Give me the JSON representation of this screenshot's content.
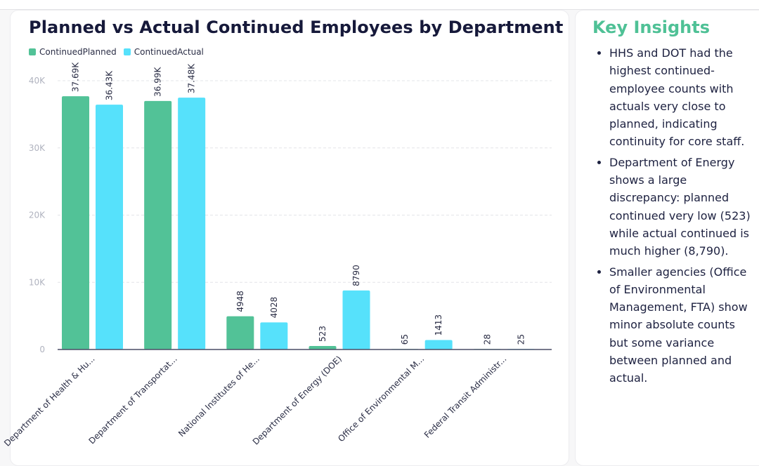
{
  "chart_data": {
    "type": "bar",
    "title": "Planned vs Actual Continued Employees by Department",
    "categories": [
      "Department of Health & Hu...",
      "Department of Transportat...",
      "National Institutes of He...",
      "Department of Energy (DOE)",
      "Office of Environmental M...",
      "Federal Transit Administr..."
    ],
    "series": [
      {
        "name": "ContinuedPlanned",
        "color": "#52c297",
        "values": [
          37690,
          36990,
          4948,
          523,
          65,
          28
        ],
        "labels": [
          "37.69K",
          "36.99K",
          "4948",
          "523",
          "65",
          "28"
        ]
      },
      {
        "name": "ContinuedActual",
        "color": "#56e1fb",
        "values": [
          36430,
          37480,
          4028,
          8790,
          1413,
          25
        ],
        "labels": [
          "36.43K",
          "37.48K",
          "4028",
          "8790",
          "1413",
          "25"
        ]
      }
    ],
    "xlabel": "",
    "ylabel": "",
    "ylim": [
      0,
      40000
    ],
    "yticks": [
      0,
      10000,
      20000,
      30000,
      40000
    ],
    "ytick_labels": [
      "0",
      "10K",
      "20K",
      "30K",
      "40K"
    ],
    "grid": true,
    "legend": "top-left"
  },
  "insights": {
    "title": "Key Insights",
    "items": [
      "HHS and DOT had the highest continued-employee counts with actuals very close to planned, indicating continuity for core staff.",
      "Department of Energy shows a large discrepancy: planned continued very low (523) while actual continued is much higher (8,790).",
      "Smaller agencies (Office of Environmental Management, FTA) show minor absolute counts but some variance between planned and actual."
    ]
  },
  "colors": {
    "title": "#16193a",
    "insights_title": "#4fc196",
    "axis_text": "#b0b3bf",
    "label_text": "#2a2d45",
    "axis_line": "#4a4d66",
    "grid": "#e3e4e8"
  }
}
